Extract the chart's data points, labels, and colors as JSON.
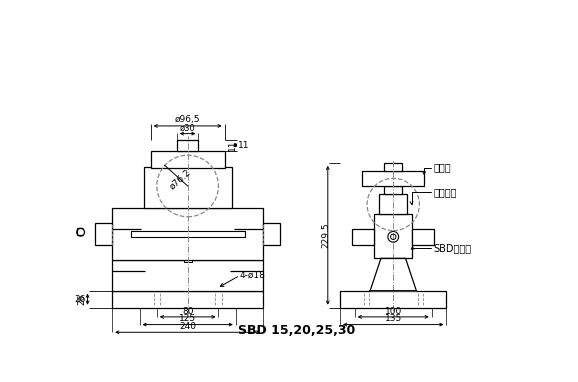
{
  "title": "SBD 15,20,25,30",
  "bg_color": "#ffffff",
  "line_color": "#000000",
  "dim_color": "#000000",
  "dash_color": "#888888",
  "annotations": {
    "d96_5": "ø96,5",
    "d30": "ø30",
    "d76_2": "ø76.2",
    "dim_11": "11",
    "dim_26": "26",
    "dim_80": "80",
    "dim_125": "125",
    "dim_240": "240",
    "dim_4_d18": "4-ø18",
    "dim_229_5": "229.5",
    "dim_100": "100",
    "dim_135": "135",
    "label_chengya": "承压头",
    "label_jiazai": "加载锂球",
    "label_sbd": "SBD传感器"
  }
}
